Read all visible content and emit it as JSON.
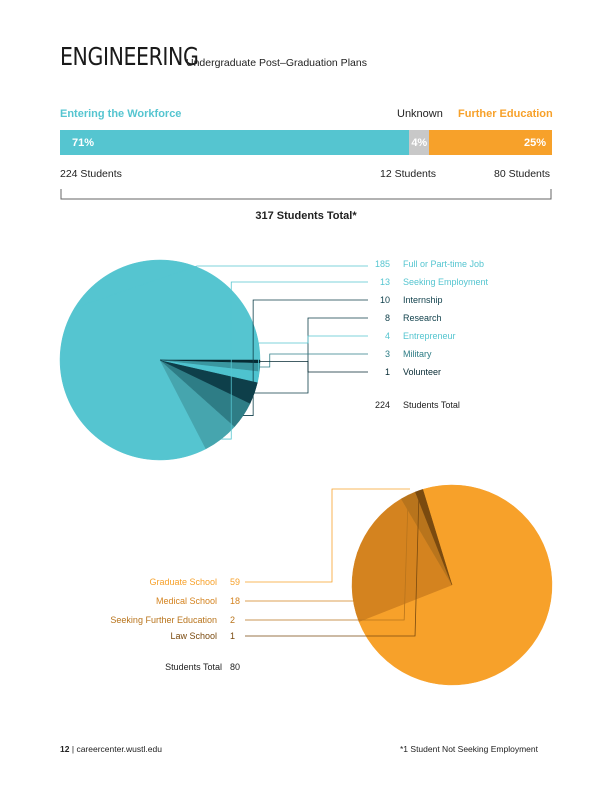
{
  "header": {
    "title": "ENGINEERING",
    "subtitle": "Undergraduate Post–Graduation Plans"
  },
  "summary": {
    "workforce_label": "Entering the Workforce",
    "unknown_label": "Unknown",
    "further_label": "Further Education",
    "workforce_pct": "71%",
    "unknown_pct": "4%",
    "further_pct": "25%",
    "workforce_count": "224 Students",
    "unknown_count": "12 Students",
    "further_count": "80 Students",
    "total": "317 Students Total*"
  },
  "footer": {
    "page": "12",
    "site": "careercenter.wustl.edu",
    "note": "*1 Student Not Seeking Employment"
  },
  "colors": {
    "teal": "#55c5d0",
    "gray": "#c8c8c8",
    "orange": "#f7a12a"
  },
  "chart_data": [
    {
      "type": "bar",
      "orientation": "horizontal-stacked",
      "categories": [
        "Entering the Workforce",
        "Unknown",
        "Further Education"
      ],
      "values": [
        71,
        4,
        25
      ],
      "value_labels": [
        "71%",
        "4%",
        "25%"
      ],
      "counts": [
        224,
        12,
        80
      ],
      "colors": [
        "#55c5d0",
        "#c8c8c8",
        "#f7a12a"
      ]
    },
    {
      "type": "pie",
      "categories": [
        "Full or Part-time Job",
        "Seeking Employment",
        "Internship",
        "Research",
        "Entrepreneur",
        "Military",
        "Volunteer"
      ],
      "values": [
        185,
        13,
        10,
        8,
        4,
        3,
        1
      ],
      "colors": [
        "#55c5d0",
        "#46a5ae",
        "#2e7d86",
        "#0e3f4a",
        "#4ec3cf",
        "#3a96a0",
        "#062a33"
      ],
      "label_colors": [
        "#55c5d0",
        "#55c5d0",
        "#0e3f4a",
        "#0e3f4a",
        "#55c5d0",
        "#2e7d86",
        "#062a33"
      ],
      "total_label": "Students Total",
      "total_value": "224"
    },
    {
      "type": "pie",
      "categories": [
        "Graduate School",
        "Medical School",
        "Seeking Further Education",
        "Law School"
      ],
      "values": [
        59,
        18,
        2,
        1
      ],
      "colors": [
        "#f7a12a",
        "#d4831f",
        "#b8741c",
        "#7a4a0f"
      ],
      "label_colors": [
        "#f7a12a",
        "#d4831f",
        "#b8741c",
        "#7a4a0f"
      ],
      "total_label": "Students Total",
      "total_value": "80"
    }
  ]
}
